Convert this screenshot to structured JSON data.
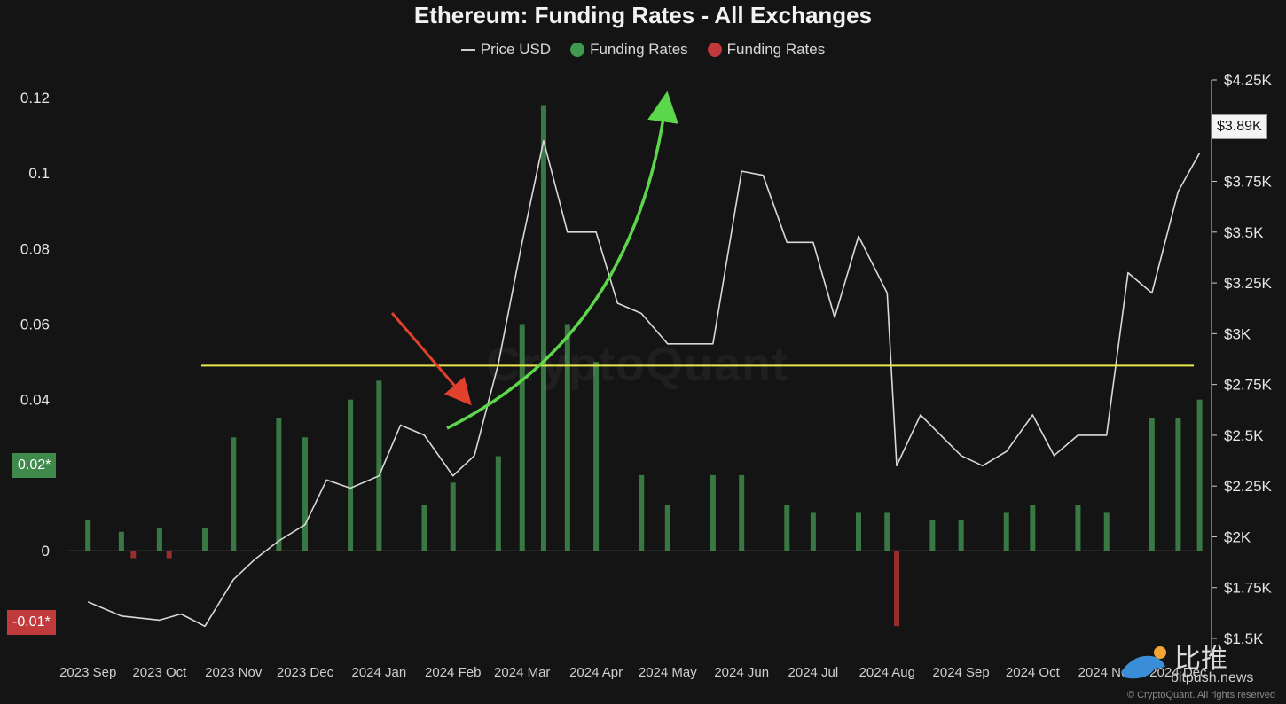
{
  "colors": {
    "background": "#141414",
    "price_line": "#d9d9d9",
    "positive_bar": "#3f8a4a",
    "negative_bar": "#b03030",
    "threshold_line": "#e8e84a",
    "green_arrow": "#5cd64a",
    "red_arrow": "#e0402c"
  },
  "page": {
    "title": "Ethereum: Funding Rates - All Exchanges"
  },
  "legend": {
    "price": "Price USD",
    "funding_pos": "Funding Rates",
    "funding_neg": "Funding Rates"
  },
  "badges": {
    "green": "0.02*",
    "red": "-0.01*",
    "price_current": "$3.89K"
  },
  "watermark": {
    "center": "CryptoQuant",
    "copyright": "© CryptoQuant. All rights reserved",
    "bitpush_cn": "比推",
    "bitpush_en": "bitpush.news"
  },
  "chart_data": {
    "type": "bar",
    "title": "Ethereum: Funding Rates - All Exchanges",
    "x_tick_labels": [
      "2023 Sep",
      "2023 Oct",
      "2023 Nov",
      "2023 Dec",
      "2024 Jan",
      "2024 Feb",
      "2024 Mar",
      "2024 Apr",
      "2024 May",
      "2024 Jun",
      "2024 Jul",
      "2024 Aug",
      "2024 Sep",
      "2024 Oct",
      "2024 Nov",
      "2024 Dec"
    ],
    "left_axis": {
      "ticks": [
        "0.12",
        "0.1",
        "0.08",
        "0.06",
        "0.04",
        "0.02",
        "0",
        "-0.01"
      ],
      "range": [
        -0.025,
        0.12
      ]
    },
    "right_axis": {
      "ticks": [
        "$4.25K",
        "$4K",
        "$3.75K",
        "$3.5K",
        "$3.25K",
        "$3K",
        "$2.75K",
        "$2.5K",
        "$2.25K",
        "$2K",
        "$1.75K",
        "$1.5K"
      ],
      "range": [
        1500,
        4250
      ]
    },
    "funding_reference_line": 0.049,
    "series": [
      {
        "name": "Price USD",
        "type": "line",
        "x": [
          "2023-09-01",
          "2023-09-15",
          "2023-10-01",
          "2023-10-10",
          "2023-10-20",
          "2023-11-01",
          "2023-11-10",
          "2023-11-20",
          "2023-12-01",
          "2023-12-10",
          "2023-12-20",
          "2024-01-01",
          "2024-01-10",
          "2024-01-20",
          "2024-02-01",
          "2024-02-10",
          "2024-02-20",
          "2024-03-01",
          "2024-03-10",
          "2024-03-20",
          "2024-04-01",
          "2024-04-10",
          "2024-04-20",
          "2024-05-01",
          "2024-05-10",
          "2024-05-20",
          "2024-06-01",
          "2024-06-10",
          "2024-06-20",
          "2024-07-01",
          "2024-07-10",
          "2024-07-20",
          "2024-08-01",
          "2024-08-05",
          "2024-08-15",
          "2024-09-01",
          "2024-09-10",
          "2024-09-20",
          "2024-10-01",
          "2024-10-10",
          "2024-10-20",
          "2024-11-01",
          "2024-11-10",
          "2024-11-20",
          "2024-12-01",
          "2024-12-10"
        ],
        "values": [
          1680,
          1610,
          1590,
          1620,
          1560,
          1790,
          1890,
          1980,
          2060,
          2280,
          2240,
          2300,
          2550,
          2500,
          2300,
          2400,
          2850,
          3450,
          3950,
          3500,
          3500,
          3150,
          3100,
          2950,
          2950,
          2950,
          3800,
          3780,
          3450,
          3450,
          3080,
          3480,
          3200,
          2350,
          2600,
          2400,
          2350,
          2420,
          2600,
          2400,
          2500,
          2500,
          3300,
          3200,
          3700,
          3890
        ]
      },
      {
        "name": "Funding Rates",
        "type": "bar",
        "sign": "positive",
        "x": [
          "2023-09-01",
          "2023-09-15",
          "2023-10-01",
          "2023-10-20",
          "2023-11-01",
          "2023-11-20",
          "2023-12-01",
          "2023-12-20",
          "2024-01-01",
          "2024-01-20",
          "2024-02-01",
          "2024-02-20",
          "2024-03-01",
          "2024-03-10",
          "2024-03-20",
          "2024-04-01",
          "2024-04-20",
          "2024-05-01",
          "2024-05-20",
          "2024-06-01",
          "2024-06-20",
          "2024-07-01",
          "2024-07-20",
          "2024-08-01",
          "2024-08-20",
          "2024-09-01",
          "2024-09-20",
          "2024-10-01",
          "2024-10-20",
          "2024-11-01",
          "2024-11-20",
          "2024-12-01",
          "2024-12-10"
        ],
        "values": [
          0.008,
          0.005,
          0.006,
          0.006,
          0.03,
          0.035,
          0.03,
          0.04,
          0.045,
          0.012,
          0.018,
          0.025,
          0.06,
          0.118,
          0.06,
          0.05,
          0.02,
          0.012,
          0.02,
          0.02,
          0.012,
          0.01,
          0.01,
          0.01,
          0.008,
          0.008,
          0.01,
          0.012,
          0.012,
          0.01,
          0.035,
          0.035,
          0.04
        ]
      },
      {
        "name": "Funding Rates",
        "type": "bar",
        "sign": "negative",
        "x": [
          "2023-09-20",
          "2023-10-05",
          "2024-08-05"
        ],
        "values": [
          -0.002,
          -0.002,
          -0.02
        ]
      }
    ]
  }
}
